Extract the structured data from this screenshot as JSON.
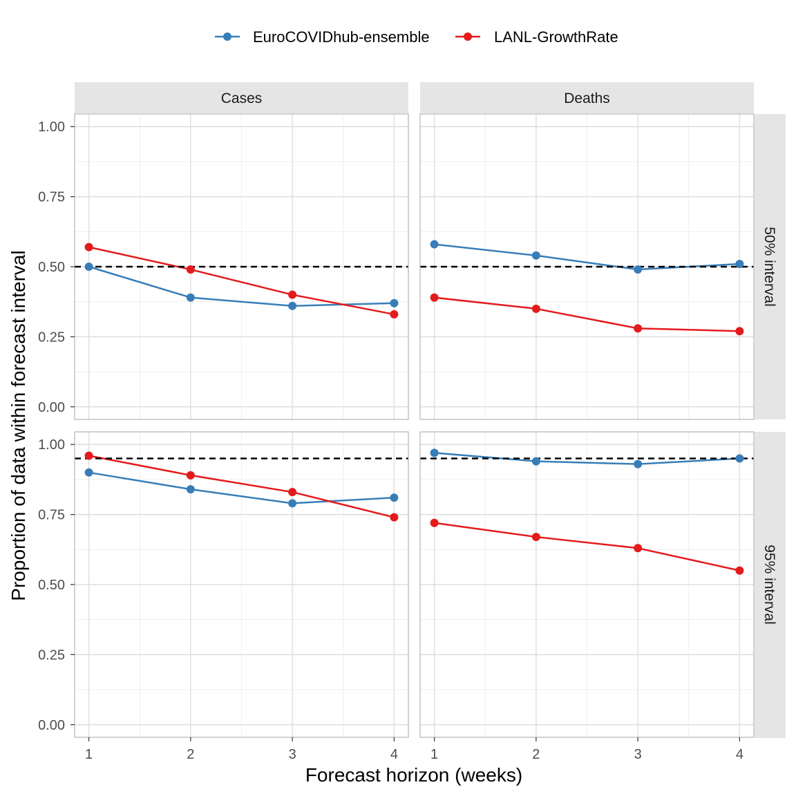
{
  "legend": [
    {
      "label": "EuroCOVIDhub-ensemble",
      "color": "#377EB8"
    },
    {
      "label": "LANL-GrowthRate",
      "color": "#E41A1C"
    }
  ],
  "chart_data": {
    "type": "line",
    "xlabel": "Forecast horizon (weeks)",
    "ylabel": "Proportion of data within forecast interval",
    "x_ticks": [
      "1",
      "2",
      "3",
      "4"
    ],
    "y_ticks": [
      "0.00",
      "0.25",
      "0.50",
      "0.75",
      "1.00"
    ],
    "ylim": [
      0,
      1
    ],
    "grid": true,
    "legend_position": "top",
    "col_facets": [
      "Cases",
      "Deaths"
    ],
    "row_facets": [
      "50% interval",
      "95% interval"
    ],
    "reference_lines": {
      "50% interval": 0.5,
      "95% interval": 0.95
    },
    "x": [
      1,
      2,
      3,
      4
    ],
    "panels": [
      {
        "col": "Cases",
        "row": "50% interval",
        "series": [
          {
            "name": "EuroCOVIDhub-ensemble",
            "values": [
              0.5,
              0.39,
              0.36,
              0.37
            ]
          },
          {
            "name": "LANL-GrowthRate",
            "values": [
              0.57,
              0.49,
              0.4,
              0.33
            ]
          }
        ]
      },
      {
        "col": "Deaths",
        "row": "50% interval",
        "series": [
          {
            "name": "EuroCOVIDhub-ensemble",
            "values": [
              0.58,
              0.54,
              0.49,
              0.51
            ]
          },
          {
            "name": "LANL-GrowthRate",
            "values": [
              0.39,
              0.35,
              0.28,
              0.27
            ]
          }
        ]
      },
      {
        "col": "Cases",
        "row": "95% interval",
        "series": [
          {
            "name": "EuroCOVIDhub-ensemble",
            "values": [
              0.9,
              0.84,
              0.79,
              0.81
            ]
          },
          {
            "name": "LANL-GrowthRate",
            "values": [
              0.96,
              0.89,
              0.83,
              0.74
            ]
          }
        ]
      },
      {
        "col": "Deaths",
        "row": "95% interval",
        "series": [
          {
            "name": "EuroCOVIDhub-ensemble",
            "values": [
              0.97,
              0.94,
              0.93,
              0.95
            ]
          },
          {
            "name": "LANL-GrowthRate",
            "values": [
              0.72,
              0.67,
              0.63,
              0.55
            ]
          }
        ]
      }
    ]
  }
}
